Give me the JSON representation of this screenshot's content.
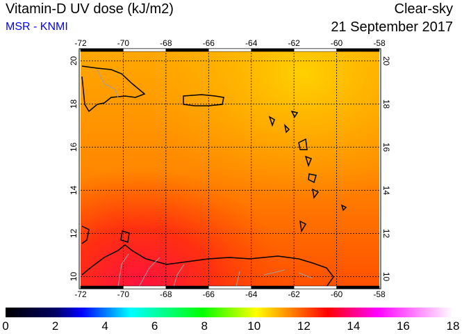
{
  "header": {
    "title": "Vitamin-D UV dose (kJ/m2)",
    "source": "MSR - KNMI",
    "sky": "Clear-sky",
    "date": "21 September 2017"
  },
  "map": {
    "lon_ticks": [
      "-72",
      "-70",
      "-68",
      "-66",
      "-64",
      "-62",
      "-60",
      "-58"
    ],
    "lat_ticks": [
      "20",
      "18",
      "16",
      "14",
      "12",
      "10"
    ],
    "lon_range": [
      -72,
      -58
    ],
    "lat_range": [
      9.5,
      20.5
    ]
  },
  "colorbar": {
    "labels": [
      "0",
      "2",
      "4",
      "6",
      "8",
      "10",
      "12",
      "14",
      "16",
      "18"
    ],
    "range": [
      0,
      18
    ],
    "colors": [
      "#000000",
      "#000060",
      "#0000ff",
      "#00ffff",
      "#00ff80",
      "#00ff00",
      "#ffff00",
      "#ff8000",
      "#ff0000",
      "#ff00ff",
      "#ffffff"
    ]
  }
}
